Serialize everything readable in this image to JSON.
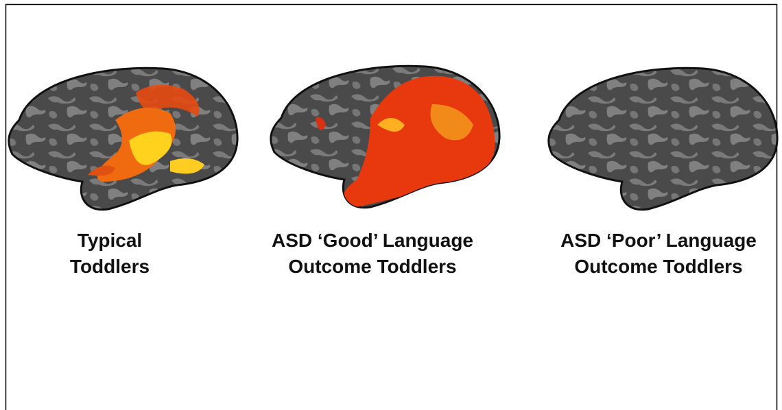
{
  "panels": [
    {
      "lines": [
        "Typical",
        "Toddlers"
      ]
    },
    {
      "lines": [
        "ASD ‘Good’ Language",
        "Outcome Toddlers"
      ]
    },
    {
      "lines": [
        "ASD ‘Poor’ Language",
        "Outcome Toddlers"
      ]
    }
  ]
}
